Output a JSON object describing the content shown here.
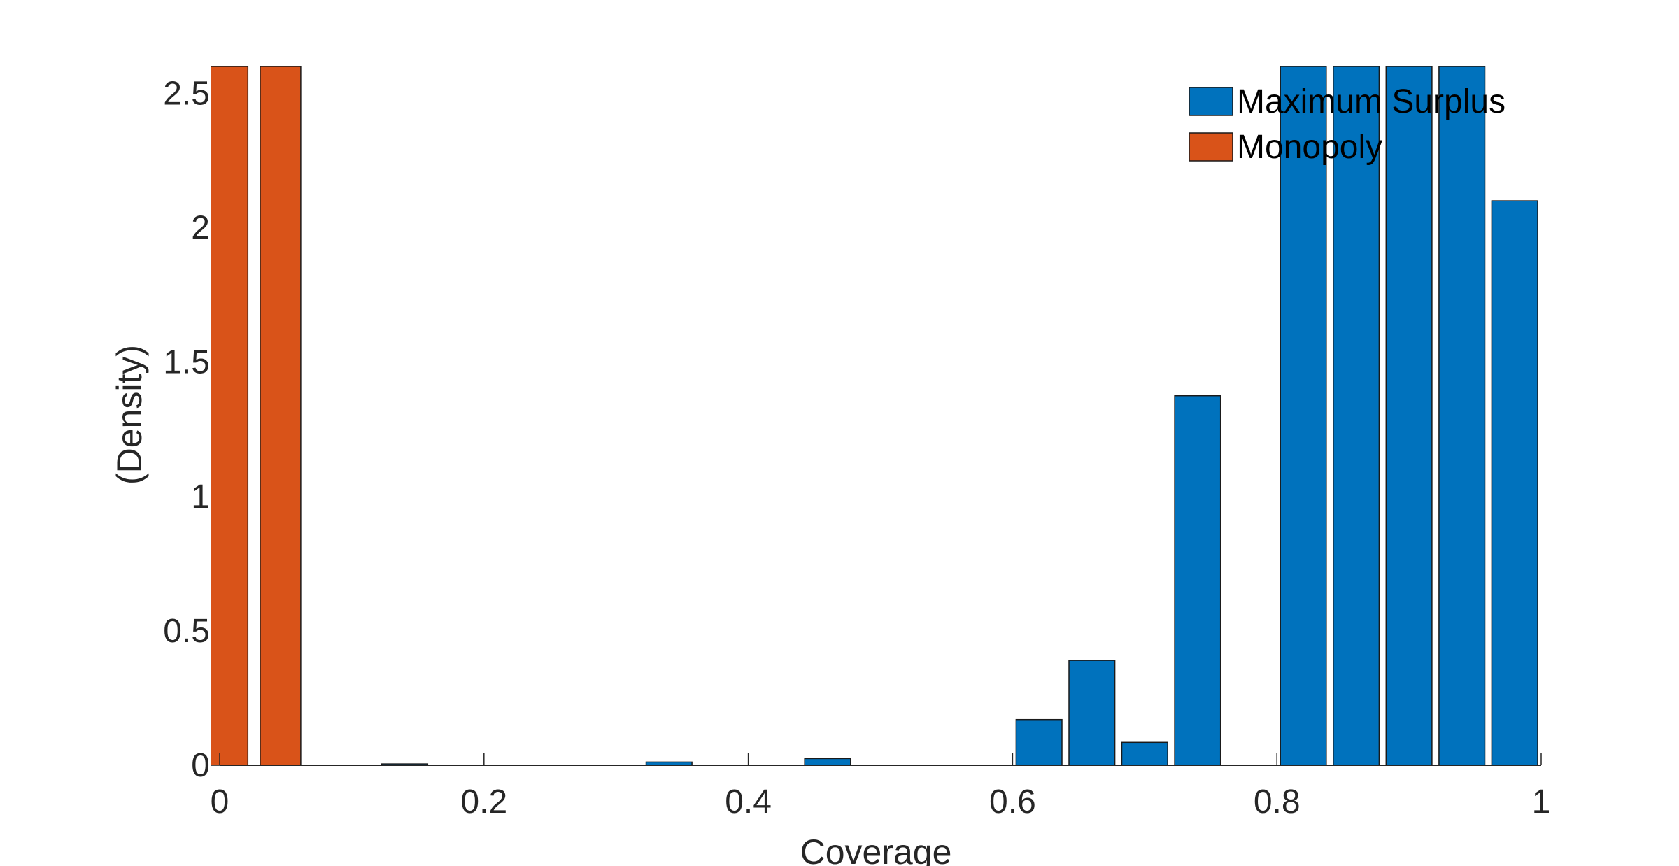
{
  "chart_data": {
    "type": "bar",
    "title": "",
    "xlabel": "Coverage",
    "ylabel": "(Density)",
    "xlim": [
      0,
      1
    ],
    "ylim": [
      0,
      2.6
    ],
    "grid": false,
    "legend_position": "top-right",
    "xticks": [
      0,
      0.2,
      0.4,
      0.6,
      0.8,
      1
    ],
    "xtick_labels": [
      "0",
      "0.2",
      "0.4",
      "0.6",
      "0.8",
      "1"
    ],
    "yticks": [
      0,
      0.5,
      1,
      1.5,
      2,
      2.5
    ],
    "ytick_labels": [
      "0",
      "0.5",
      "1",
      "1.5",
      "2",
      "2.5"
    ],
    "bin_edges": [
      0,
      0.04,
      0.08,
      0.12,
      0.16,
      0.2,
      0.24,
      0.28,
      0.32,
      0.36,
      0.4,
      0.44,
      0.48,
      0.52,
      0.56,
      0.6,
      0.64,
      0.68,
      0.72,
      0.76,
      0.8,
      0.84,
      0.88,
      0.92,
      0.96,
      1.0
    ],
    "series": [
      {
        "name": "Maximum Surplus",
        "color": "#0072BD",
        "bins": [
          {
            "x0": 0.12,
            "x1": 0.16,
            "value": 0.005
          },
          {
            "x0": 0.32,
            "x1": 0.36,
            "value": 0.012
          },
          {
            "x0": 0.44,
            "x1": 0.48,
            "value": 0.025
          },
          {
            "x0": 0.6,
            "x1": 0.64,
            "value": 0.17
          },
          {
            "x0": 0.64,
            "x1": 0.68,
            "value": 0.39
          },
          {
            "x0": 0.68,
            "x1": 0.72,
            "value": 0.085
          },
          {
            "x0": 0.72,
            "x1": 0.76,
            "value": 1.375
          },
          {
            "x0": 0.8,
            "x1": 0.84,
            "value": 2.6
          },
          {
            "x0": 0.84,
            "x1": 0.88,
            "value": 2.6
          },
          {
            "x0": 0.88,
            "x1": 0.92,
            "value": 2.6
          },
          {
            "x0": 0.92,
            "x1": 0.96,
            "value": 2.6
          },
          {
            "x0": 0.96,
            "x1": 1.0,
            "value": 2.1
          }
        ]
      },
      {
        "name": "Monopoly",
        "color": "#D95319",
        "bins": [
          {
            "x0": -0.012,
            "x1": 0.024,
            "value": 2.6
          },
          {
            "x0": 0.028,
            "x1": 0.064,
            "value": 2.6
          }
        ]
      }
    ]
  }
}
